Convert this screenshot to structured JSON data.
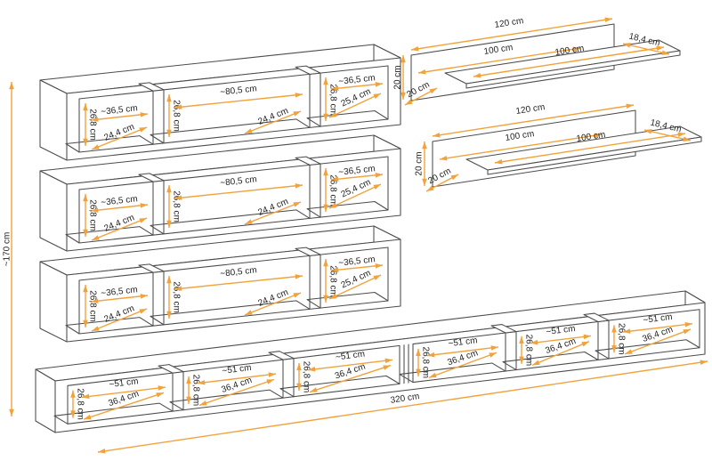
{
  "labels": {
    "overall_height": "~170 cm",
    "overall_width": "320 cm",
    "wall_cabinet": {
      "left_width": "~36,5 cm",
      "left_height": "26,8 cm",
      "left_depth": "24,4 cm",
      "mid_width": "~80,5 cm",
      "mid_height": "26,8 cm",
      "mid_depth": "24,4 cm",
      "right_width": "~36,5 cm",
      "right_height": "26,8 cm",
      "right_depth": "25,4 cm"
    },
    "wall_shelf": {
      "total_width": "120 cm",
      "panel_width": "100 cm",
      "board_width": "100 cm",
      "board_depth": "18,4 cm",
      "height": "20 cm",
      "side_depth": "20 cm"
    },
    "tv_stand": {
      "compartment_width": "~51 cm",
      "compartment_depth": "36,4 cm",
      "compartment_height": "26,8 cm"
    }
  },
  "colors": {
    "dimension": "#F2A23B",
    "outline": "#4C4C4C",
    "text": "#1F1F1F",
    "background": "#FFFFFF"
  }
}
